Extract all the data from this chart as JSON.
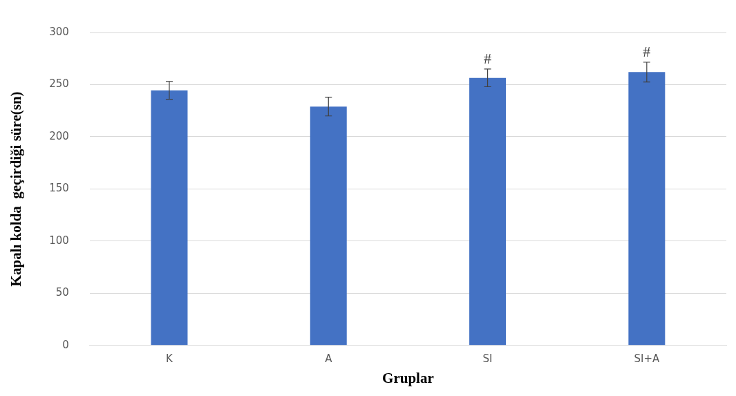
{
  "chart_data": {
    "type": "bar",
    "xlabel": "Gruplar",
    "ylabel": "Kapalı kolda  geçirdiği süre(sn)",
    "categories": [
      "K",
      "A",
      "SI",
      "SI+A"
    ],
    "values": [
      244.5,
      229,
      256.5,
      262
    ],
    "errors": [
      8.5,
      9,
      8.5,
      9.5
    ],
    "color": "#4472c4",
    "ylim": [
      0,
      300
    ],
    "yticks": [
      0,
      50,
      100,
      150,
      200,
      250,
      300
    ],
    "grid": "y",
    "legend": false,
    "annotations": [
      {
        "text": "#",
        "x": "SI",
        "y": 256.5
      },
      {
        "text": "#",
        "x": "SI+A",
        "y": 262
      }
    ]
  }
}
